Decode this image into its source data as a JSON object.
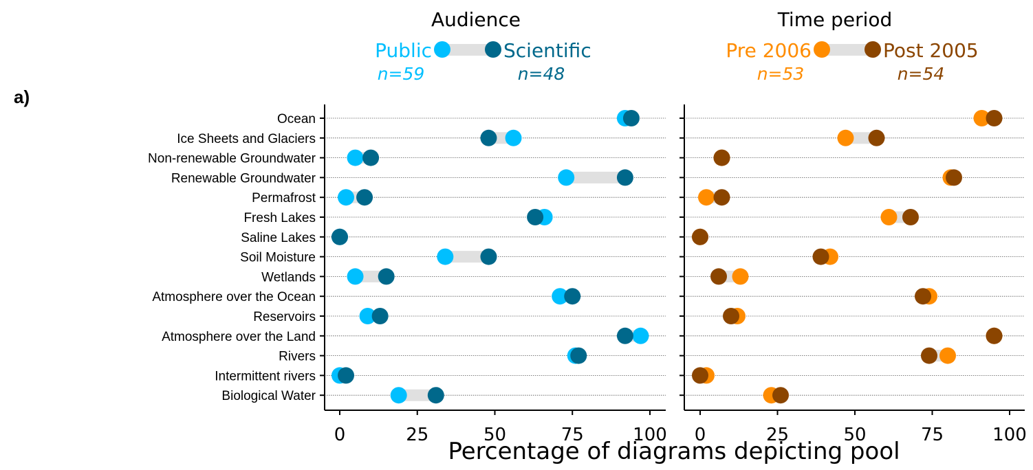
{
  "panel_label": "a)",
  "xlabel": "Percentage of diagrams depicting pool",
  "colors": {
    "public": "#00bfff",
    "scientific": "#00688b",
    "pre2006": "#ff8c00",
    "post2005": "#8b4500",
    "connector": "#e0e0e0",
    "gridline": "#555555"
  },
  "chart_data": [
    {
      "type": "dumbbell",
      "title": "Audience",
      "xlim": [
        0,
        100
      ],
      "xticks": [
        "0",
        "25",
        "50",
        "75",
        "100"
      ],
      "legend": [
        {
          "name": "Public",
          "n": "n=59"
        },
        {
          "name": "Scientific",
          "n": "n=48"
        }
      ],
      "categories": [
        "Ocean",
        "Ice Sheets and Glaciers",
        "Non-renewable Groundwater",
        "Renewable Groundwater",
        "Permafrost",
        "Fresh Lakes",
        "Saline Lakes",
        "Soil Moisture",
        "Wetlands",
        "Atmosphere over the Ocean",
        "Reservoirs",
        "Atmosphere over the Land",
        "Rivers",
        "Intermittent rivers",
        "Biological Water"
      ],
      "series": [
        {
          "name": "Public",
          "values": [
            92,
            56,
            5,
            73,
            2,
            66,
            0,
            34,
            5,
            71,
            9,
            97,
            76,
            0,
            19
          ]
        },
        {
          "name": "Scientific",
          "values": [
            94,
            48,
            10,
            92,
            8,
            63,
            0,
            48,
            15,
            75,
            13,
            92,
            77,
            2,
            31
          ]
        }
      ]
    },
    {
      "type": "dumbbell",
      "title": "Time period",
      "xlim": [
        0,
        100
      ],
      "xticks": [
        "0",
        "25",
        "50",
        "75",
        "100"
      ],
      "legend": [
        {
          "name": "Pre 2006",
          "n": "n=53"
        },
        {
          "name": "Post 2005",
          "n": "n=54"
        }
      ],
      "categories": [
        "Ocean",
        "Ice Sheets and Glaciers",
        "Non-renewable Groundwater",
        "Renewable Groundwater",
        "Permafrost",
        "Fresh Lakes",
        "Saline Lakes",
        "Soil Moisture",
        "Wetlands",
        "Atmosphere over the Ocean",
        "Reservoirs",
        "Atmosphere over the Land",
        "Rivers",
        "Intermittent rivers",
        "Biological Water"
      ],
      "series": [
        {
          "name": "Pre 2006",
          "values": [
            91,
            47,
            7,
            81,
            2,
            61,
            0,
            42,
            13,
            74,
            12,
            95,
            80,
            2,
            23
          ]
        },
        {
          "name": "Post 2005",
          "values": [
            95,
            57,
            7,
            82,
            7,
            68,
            0,
            39,
            6,
            72,
            10,
            95,
            74,
            0,
            26
          ]
        }
      ]
    }
  ]
}
